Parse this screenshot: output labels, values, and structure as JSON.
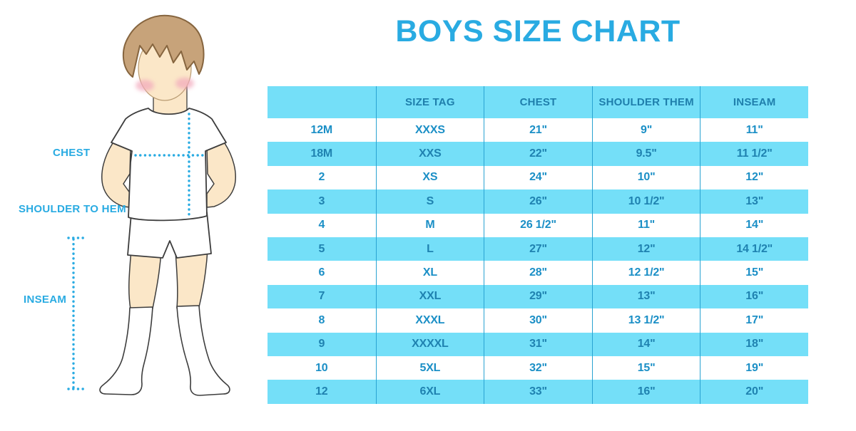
{
  "title": "BOYS SIZE CHART",
  "figure": {
    "labels": {
      "chest": "CHEST",
      "shoulder": "SHOULDER TO HEM",
      "inseam": "INSEAM"
    }
  },
  "chart_data": {
    "type": "table",
    "title": "BOYS SIZE CHART",
    "columns": [
      "",
      "SIZE TAG",
      "CHEST",
      "SHOULDER THEM",
      "INSEAM"
    ],
    "rows": [
      [
        "12M",
        "XXXS",
        "21\"",
        "9\"",
        "11\""
      ],
      [
        "18M",
        "XXS",
        "22\"",
        "9.5\"",
        "11 1/2\""
      ],
      [
        "2",
        "XS",
        "24\"",
        "10\"",
        "12\""
      ],
      [
        "3",
        "S",
        "26\"",
        "10 1/2\"",
        "13\""
      ],
      [
        "4",
        "M",
        "26 1/2\"",
        "11\"",
        "14\""
      ],
      [
        "5",
        "L",
        "27\"",
        "12\"",
        "14 1/2\""
      ],
      [
        "6",
        "XL",
        "28\"",
        "12 1/2\"",
        "15\""
      ],
      [
        "7",
        "XXL",
        "29\"",
        "13\"",
        "16\""
      ],
      [
        "8",
        "XXXL",
        "30\"",
        "13 1/2\"",
        "17\""
      ],
      [
        "9",
        "XXXXL",
        "31\"",
        "14\"",
        "18\""
      ],
      [
        "10",
        "5XL",
        "32\"",
        "15\"",
        "19\""
      ],
      [
        "12",
        "6XL",
        "33\"",
        "16\"",
        "20\""
      ]
    ]
  },
  "colors": {
    "accent_blue": "#29ABE2",
    "row_blue": "#74DFF8",
    "header_text": "#1F7FAC",
    "cell_text": "#1B8FC6",
    "alt_cell_text": "#1F82B0",
    "divider": "#2AA3D2",
    "skin": "#FBE7C8",
    "hair": "#C7A37A",
    "hair_outline": "#86653F",
    "blush": "#F2A8BC",
    "outline": "#3D3D3D"
  }
}
